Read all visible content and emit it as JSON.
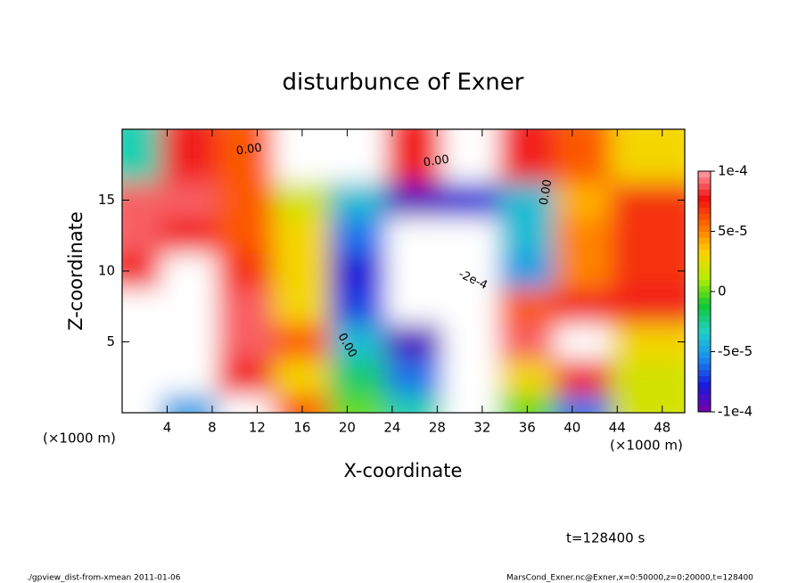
{
  "chart_data": {
    "type": "contour",
    "title": "disturbunce of Exner",
    "xlabel": "X-coordinate",
    "ylabel": "Z-coordinate",
    "x_unit": "(×1000 m)",
    "xlim": [
      0,
      50
    ],
    "ylim": [
      0,
      20
    ],
    "xticks": [
      4,
      8,
      12,
      16,
      20,
      24,
      28,
      32,
      36,
      40,
      44,
      48
    ],
    "yticks": [
      5,
      10,
      15
    ],
    "clim": [
      -0.0001,
      0.0001
    ],
    "cticks": [
      {
        "value": 0.0001,
        "label": "1e-4"
      },
      {
        "value": 5e-05,
        "label": "5e-5"
      },
      0,
      {
        "value": -5e-05,
        "label": "-5e-5"
      },
      {
        "value": -0.0001,
        "label": "-1e-4"
      }
    ],
    "colormap": [
      "#7a00a8",
      "#1a1adc",
      "#1a8cf0",
      "#20d0c8",
      "#10c830",
      "#b4ee00",
      "#ffd000",
      "#ff6a00",
      "#f01010",
      "#ffa0a8"
    ],
    "x": [
      2.5,
      7.5,
      12.5,
      17.5,
      22.5,
      27.5,
      32.5,
      37.5,
      42.5,
      47.5
    ],
    "y": [
      1.25,
      3.75,
      6.25,
      8.75,
      11.25,
      13.75,
      16.25,
      18.75
    ],
    "values": [
      [
        0.00015,
        -5e-05,
        0.00015,
        6e-05,
        0,
        -3e-05,
        -0.00015,
        0,
        -6e-05,
        2e-05
      ],
      [
        0.00015,
        0.00015,
        8e-05,
        3e-05,
        -2e-05,
        -6e-05,
        -0.00015,
        3e-05,
        8e-05,
        2e-05
      ],
      [
        0.00015,
        0.00015,
        9e-05,
        6e-05,
        -4e-05,
        -9e-05,
        -0.00015,
        9e-05,
        0.00015,
        3e-05
      ],
      [
        0.00015,
        0.00015,
        9e-05,
        3e-05,
        -7e-05,
        -0.00015,
        -0.00015,
        6e-05,
        8e-05,
        8e-05
      ],
      [
        8e-05,
        0.00015,
        7e-05,
        3e-05,
        -8e-05,
        -0.00015,
        -0.00015,
        -5e-05,
        5e-05,
        7e-05
      ],
      [
        9e-05,
        8e-05,
        6e-05,
        3e-05,
        -6e-05,
        -0.00015,
        -0.00015,
        -4e-05,
        5e-05,
        7e-05
      ],
      [
        9e-05,
        9e-05,
        6e-05,
        2e-05,
        -4e-05,
        -9e-05,
        -8e-05,
        -4e-05,
        4e-05,
        7e-05
      ],
      [
        -3e-05,
        8e-05,
        6e-05,
        0.00015,
        0.00015,
        8e-05,
        0.00015,
        8e-05,
        6e-05,
        3e-05
      ]
    ],
    "annotations": [
      "0.00",
      "-2e-4"
    ],
    "time_label": "t=128400 s",
    "footer_left": "./gpview_dist-from-xmean  2011-01-06",
    "footer_right": "MarsCond_Exner.nc@Exner,x=0:50000,z=0:20000,t=128400"
  }
}
